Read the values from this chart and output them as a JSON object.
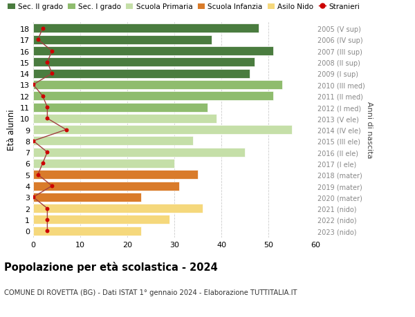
{
  "ages": [
    18,
    17,
    16,
    15,
    14,
    13,
    12,
    11,
    10,
    9,
    8,
    7,
    6,
    5,
    4,
    3,
    2,
    1,
    0
  ],
  "right_labels": [
    "2005 (V sup)",
    "2006 (IV sup)",
    "2007 (III sup)",
    "2008 (II sup)",
    "2009 (I sup)",
    "2010 (III med)",
    "2011 (II med)",
    "2012 (I med)",
    "2013 (V ele)",
    "2014 (IV ele)",
    "2015 (III ele)",
    "2016 (II ele)",
    "2017 (I ele)",
    "2018 (mater)",
    "2019 (mater)",
    "2020 (mater)",
    "2021 (nido)",
    "2022 (nido)",
    "2023 (nido)"
  ],
  "bar_values": [
    48,
    38,
    51,
    47,
    46,
    53,
    51,
    37,
    39,
    55,
    34,
    45,
    30,
    35,
    31,
    23,
    36,
    29,
    23
  ],
  "bar_colors": [
    "#4a7c3f",
    "#4a7c3f",
    "#4a7c3f",
    "#4a7c3f",
    "#4a7c3f",
    "#8fbc6e",
    "#8fbc6e",
    "#8fbc6e",
    "#c5dfa8",
    "#c5dfa8",
    "#c5dfa8",
    "#c5dfa8",
    "#c5dfa8",
    "#d97b2a",
    "#d97b2a",
    "#d97b2a",
    "#f5d87c",
    "#f5d87c",
    "#f5d87c"
  ],
  "stranieri_values": [
    2,
    1,
    4,
    3,
    4,
    0,
    2,
    3,
    3,
    7,
    0,
    3,
    2,
    1,
    4,
    0,
    3,
    3,
    3
  ],
  "legend_labels": [
    "Sec. II grado",
    "Sec. I grado",
    "Scuola Primaria",
    "Scuola Infanzia",
    "Asilo Nido",
    "Stranieri"
  ],
  "legend_colors": [
    "#4a7c3f",
    "#8fbc6e",
    "#c5dfa8",
    "#d97b2a",
    "#f5d87c",
    "#cc0000"
  ],
  "title": "Popolazione per età scolastica - 2024",
  "subtitle": "COMUNE DI ROVETTA (BG) - Dati ISTAT 1° gennaio 2024 - Elaborazione TUTTITALIA.IT",
  "ylabel": "Età alunni",
  "right_ylabel": "Anni di nascita",
  "xlim": [
    0,
    60
  ],
  "background_color": "#ffffff",
  "grid_color": "#cccccc",
  "right_label_color": "#888888"
}
